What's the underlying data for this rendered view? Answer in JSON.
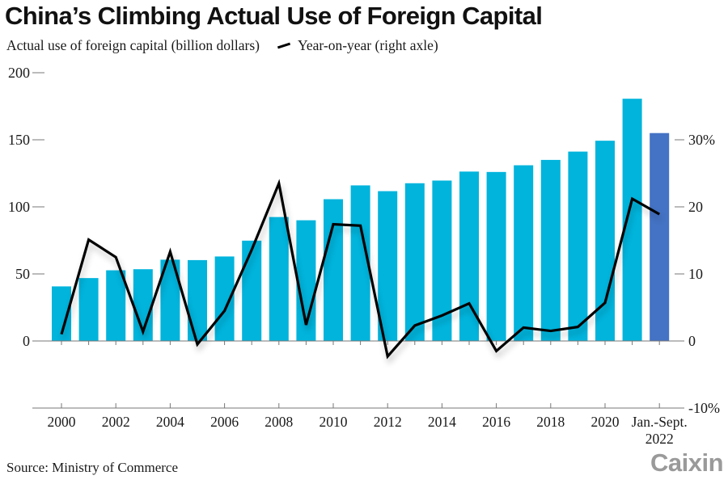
{
  "header": {
    "title": "China’s Climbing Actual Use of Foreign Capital",
    "legend_bar_label": "Actual use of foreign capital (billion dollars)",
    "legend_line_label": "Year-on-year (right axle)"
  },
  "footer": {
    "source": "Source: Ministry of Commerce",
    "brand": "Caixin"
  },
  "colors": {
    "bar": "#00b4dc",
    "bar_highlight": "#4472c4",
    "line": "#000000",
    "axis": "#777777"
  },
  "chart_data": {
    "type": "bar",
    "title": "China’s Climbing Actual Use of Foreign Capital",
    "categories": [
      "2000",
      "2001",
      "2002",
      "2003",
      "2004",
      "2005",
      "2006",
      "2007",
      "2008",
      "2009",
      "2010",
      "2011",
      "2012",
      "2013",
      "2014",
      "2015",
      "2016",
      "2017",
      "2018",
      "2019",
      "2020",
      "2021",
      "Jan.-Sept. 2022"
    ],
    "x_tick_labels": [
      "2000",
      "2002",
      "2004",
      "2006",
      "2008",
      "2010",
      "2012",
      "2014",
      "2016",
      "2018",
      "2020",
      "Jan.-Sept.\n2022"
    ],
    "series": [
      {
        "name": "Actual use of foreign capital (billion dollars)",
        "type": "bar",
        "axis": "left",
        "values": [
          40.7,
          46.9,
          52.7,
          53.5,
          60.6,
          60.3,
          63.0,
          74.8,
          92.4,
          90.0,
          105.7,
          116.0,
          111.7,
          117.6,
          119.6,
          126.3,
          126.0,
          131.0,
          135.0,
          141.2,
          149.3,
          180.6,
          155.0
        ],
        "highlight_index": 22
      },
      {
        "name": "Year-on-year (right axle)",
        "type": "line",
        "axis": "right",
        "unit": "%",
        "values": [
          1.0,
          15.1,
          12.5,
          1.4,
          13.3,
          -0.5,
          4.5,
          13.6,
          23.5,
          2.4,
          17.4,
          17.2,
          -2.3,
          2.3,
          3.8,
          5.6,
          -1.5,
          2.0,
          1.5,
          2.1,
          5.7,
          21.2,
          18.9
        ]
      }
    ],
    "left_axis": {
      "ylim": [
        0,
        200
      ],
      "ticks": [
        "0",
        "50",
        "100",
        "150",
        "200"
      ]
    },
    "right_axis": {
      "ylim": [
        -10,
        30
      ],
      "ticks": [
        "-10%",
        "0",
        "10",
        "20",
        "30%"
      ]
    },
    "xlabel": "",
    "ylabel": "Actual use of foreign capital (billion dollars)",
    "y2label": "Year-on-year (right axle)",
    "legend_position": "top-left",
    "grid": false
  }
}
